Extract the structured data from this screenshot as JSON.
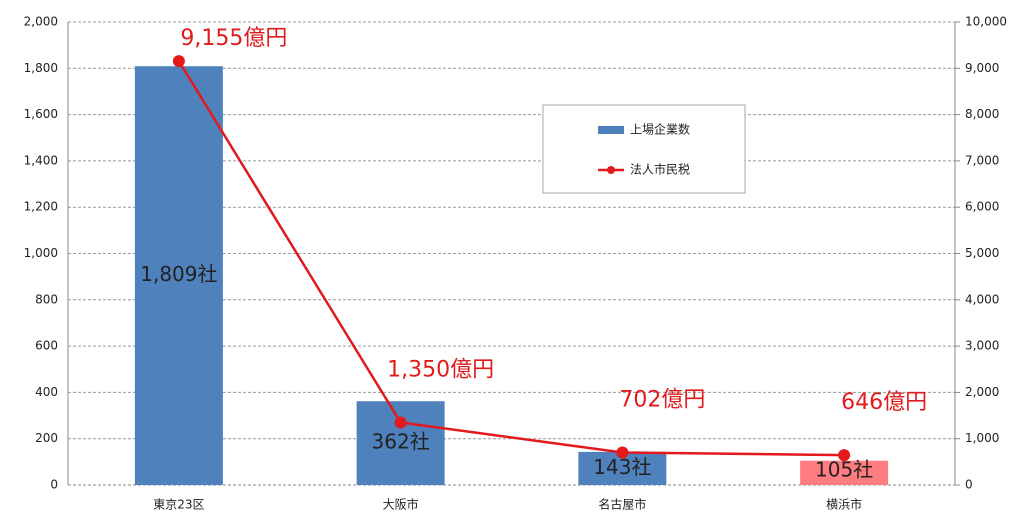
{
  "chart_data": {
    "type": "bar-line",
    "categories": [
      "東京23区",
      "大阪市",
      "名古屋市",
      "横浜市"
    ],
    "series": [
      {
        "name": "上場企業数",
        "type": "bar",
        "color": "#4f81bd",
        "colors": [
          "#4f81bd",
          "#4f81bd",
          "#4f81bd",
          "#ff7c80"
        ],
        "values": [
          1809,
          362,
          143,
          105
        ],
        "value_labels": [
          "1,809社",
          "362社",
          "143社",
          "105社"
        ]
      },
      {
        "name": "法人市民税",
        "type": "line",
        "axis": "y2",
        "color": "#e31a1c",
        "values": [
          9155,
          1350,
          702,
          646
        ],
        "value_labels": [
          "9,155億円",
          "1,350億円",
          "702億円",
          "646億円"
        ]
      }
    ],
    "ylim": [
      0,
      2000
    ],
    "yticks": [
      0,
      200,
      400,
      600,
      800,
      {
        "value": 1000,
        "label": "1,000"
      },
      {
        "value": 1200,
        "label": "1,200"
      },
      {
        "value": 1400,
        "label": "1,400"
      },
      {
        "value": 1600,
        "label": "1,600"
      },
      {
        "value": 1800,
        "label": "1,800"
      },
      {
        "value": 2000,
        "label": "2,000"
      }
    ],
    "y2lim": [
      0,
      10000
    ],
    "y2ticks": [
      0,
      {
        "value": 1000,
        "label": "1,000"
      },
      {
        "value": 2000,
        "label": "2,000"
      },
      {
        "value": 3000,
        "label": "3,000"
      },
      {
        "value": 4000,
        "label": "4,000"
      },
      {
        "value": 5000,
        "label": "5,000"
      },
      {
        "value": 6000,
        "label": "6,000"
      },
      {
        "value": 7000,
        "label": "7,000"
      },
      {
        "value": 8000,
        "label": "8,000"
      },
      {
        "value": 9000,
        "label": "9,000"
      },
      {
        "value": 10000,
        "label": "10,000"
      }
    ],
    "grid": true,
    "legend": "upper right"
  }
}
